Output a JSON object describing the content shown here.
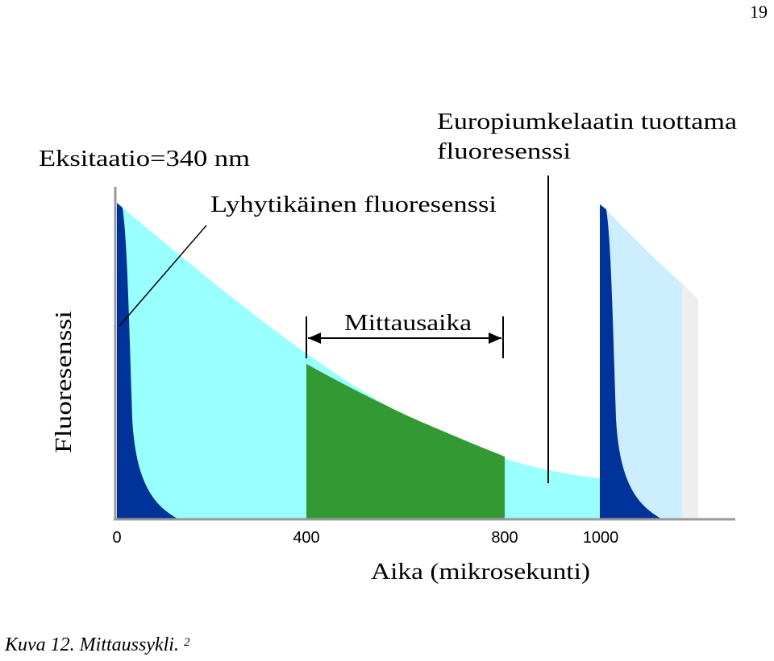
{
  "page_number": "19",
  "figure": {
    "excitation_label": "Eksitaatio=340 nm",
    "short_lived_label": "Lyhytikäinen fluoresenssi",
    "europium_label_line1": "Europiumkelaatin tuottama",
    "europium_label_line2": "fluoresenssi",
    "measurement_window_label": "Mittausaika",
    "y_axis_label": "Fluoresenssi",
    "x_axis_label": "Aika (mikrosekunti)",
    "x_ticks": [
      "0",
      "400",
      "800",
      "1000"
    ],
    "colors": {
      "short_lived_fill": "#003399",
      "long_lived_fill": "#99FFFF",
      "measurement_fill": "#339933",
      "next_cycle_fill": "#CCEEFF",
      "axis": "#999999"
    }
  },
  "caption": {
    "text": "Kuva 12. Mittaussykli.",
    "superscript": "2"
  }
}
